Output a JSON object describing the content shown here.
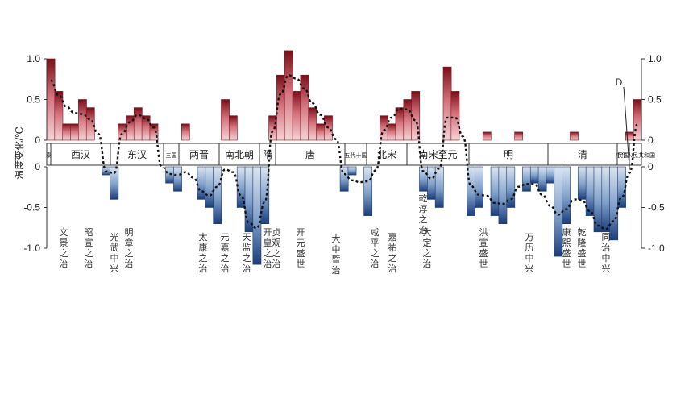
{
  "chart_data": {
    "type": "bar",
    "ylabel": "温度变化/℃",
    "ylim": [
      -1.0,
      1.0
    ],
    "yticks_left": [
      "1.0",
      "0.5",
      "0",
      "0",
      "-0.5",
      "-1.0"
    ],
    "yticks_right": [
      "1.0",
      "0.5",
      "0",
      "0",
      "-0.5",
      "-1.0"
    ],
    "dynasties": [
      {
        "label": "秦",
        "small": true
      },
      {
        "label": "西汉",
        "small": false
      },
      {
        "label": "东汉",
        "small": false
      },
      {
        "label": "三国",
        "small": true
      },
      {
        "label": "两晋",
        "small": false
      },
      {
        "label": "南北朝",
        "small": false
      },
      {
        "label": "隋",
        "small": false
      },
      {
        "label": "唐",
        "small": false
      },
      {
        "label": "五代十国",
        "small": true
      },
      {
        "label": "北宋",
        "small": false
      },
      {
        "label": "南宋至元",
        "small": false
      },
      {
        "label": "明",
        "small": false
      },
      {
        "label": "清",
        "small": false
      },
      {
        "label": "民国",
        "small": true
      },
      {
        "label": "中华人民共和国",
        "small": true
      }
    ],
    "values": [
      1.0,
      0.6,
      0.2,
      0.2,
      0.5,
      0.4,
      0.0,
      -0.1,
      -0.4,
      0.2,
      0.3,
      0.4,
      0.3,
      0.2,
      0.0,
      -0.2,
      -0.3,
      0.2,
      0.0,
      -0.4,
      -0.5,
      -0.7,
      0.5,
      0.3,
      -0.5,
      -0.8,
      -1.2,
      -0.7,
      0.3,
      0.8,
      1.1,
      0.6,
      0.8,
      0.4,
      0.2,
      0.3,
      0.0,
      -0.3,
      -0.1,
      0.0,
      -0.6,
      0.0,
      0.3,
      0.2,
      0.4,
      0.5,
      0.6,
      -0.3,
      -0.4,
      -0.5,
      0.9,
      0.6,
      0.0,
      -0.6,
      -0.5,
      0.1,
      -0.6,
      -0.7,
      -0.5,
      0.1,
      -0.3,
      -0.2,
      -0.3,
      -0.2,
      -1.1,
      -0.7,
      0.1,
      -0.4,
      -0.6,
      -0.8,
      -0.8,
      -0.9,
      -0.5,
      0.1,
      0.5
    ],
    "trend_label": "D",
    "events": [
      "文景之治",
      "昭宣之治",
      "光武中兴",
      "明章之治",
      "贞观之治",
      "开元盛世",
      "大中暨治",
      "咸平之治",
      "嘉祐之治",
      "乾淳之治",
      "大定之治",
      "洪宣盛世",
      "万历中兴",
      "康熙盛世",
      "乾隆盛世",
      "同治中兴",
      "元嘉之治",
      "开皇之治",
      "天监之治",
      "太康之治"
    ]
  }
}
